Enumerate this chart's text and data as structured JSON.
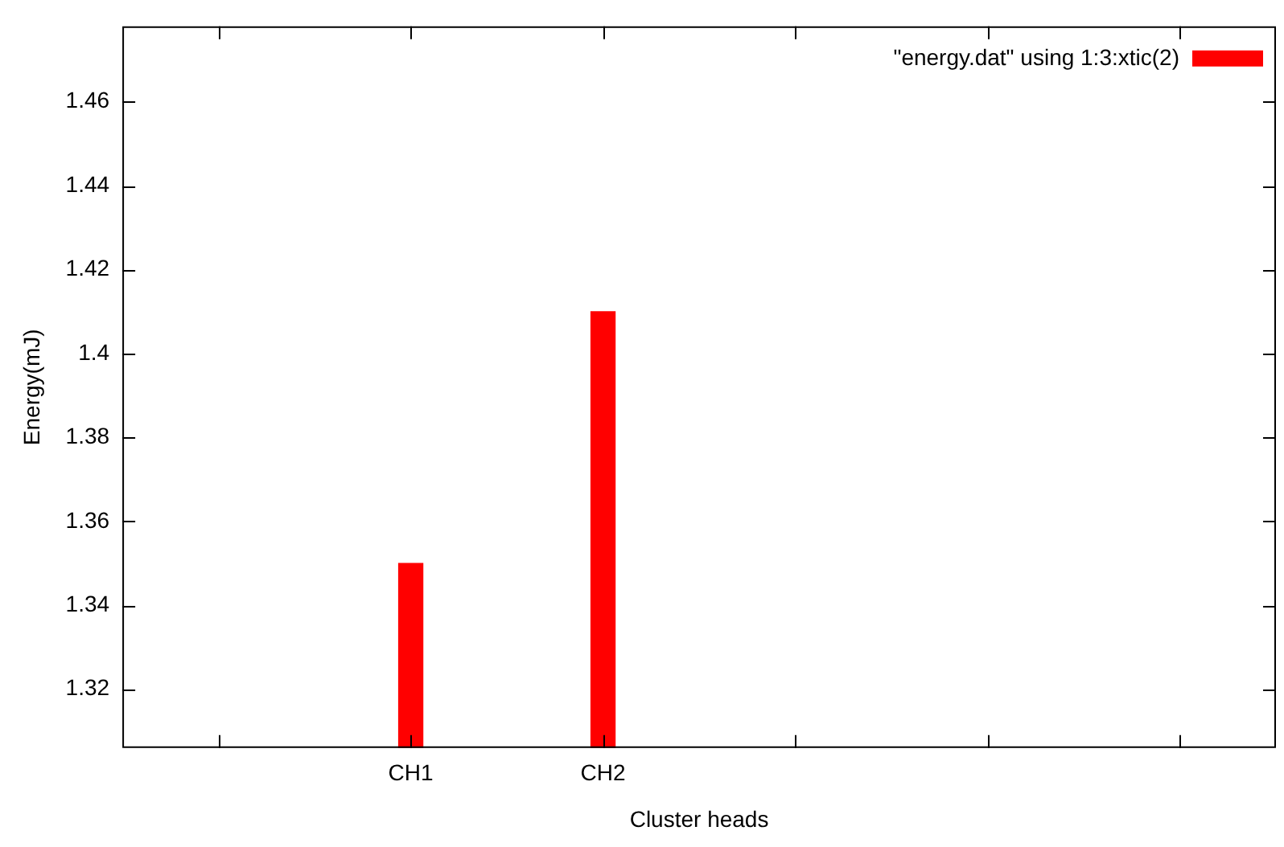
{
  "chart_data": {
    "type": "bar",
    "xlabel": "Cluster heads",
    "ylabel": "Energy(mJ)",
    "categories": [
      null,
      "CH1",
      "CH2",
      null,
      null,
      null
    ],
    "series": [
      {
        "name": "\"energy.dat\" using 1:3:xtic(2)",
        "color": "#ff0000",
        "values": [
          null,
          1.35,
          1.41,
          null,
          null,
          null
        ]
      }
    ],
    "ylim": [
      1.306,
      1.478
    ],
    "yticks": [
      1.32,
      1.34,
      1.36,
      1.38,
      1.4,
      1.42,
      1.44,
      1.46
    ],
    "grid": false,
    "legend": "top right"
  }
}
